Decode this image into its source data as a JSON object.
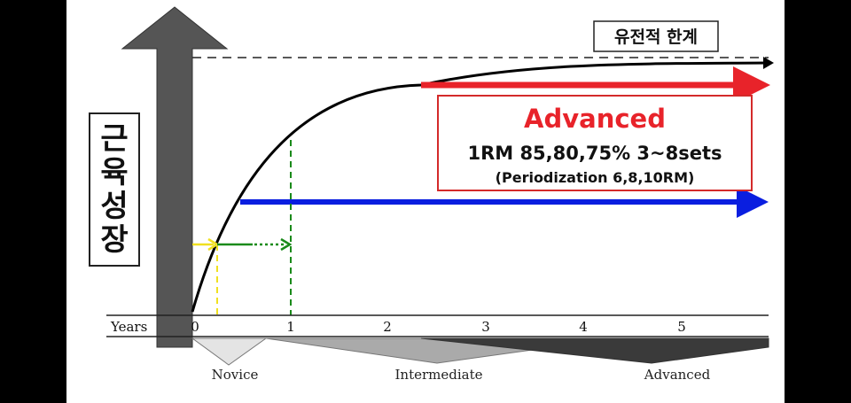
{
  "slide": {
    "y_axis_label": "근육성장",
    "limit_label": "유전적 한계",
    "advanced_box": {
      "title": "Advanced",
      "line1": "1RM 85,80,75% 3~8sets",
      "line2": "(Periodization 6,8,10RM)"
    },
    "timeline": {
      "years_label": "Years",
      "ticks": [
        "0",
        "1",
        "2",
        "3",
        "4",
        "5"
      ],
      "stages": [
        "Novice",
        "Intermediate",
        "Advanced"
      ]
    },
    "colors": {
      "background": "#000000",
      "slide": "#ffffff",
      "axis_arrow": "#555555",
      "curve": "#000000",
      "advanced_red": "#e8232a",
      "intermediate_blue": "#0a1ee0",
      "novice_yellow": "#f0e020",
      "novice_green": "#1a8a1a"
    }
  }
}
